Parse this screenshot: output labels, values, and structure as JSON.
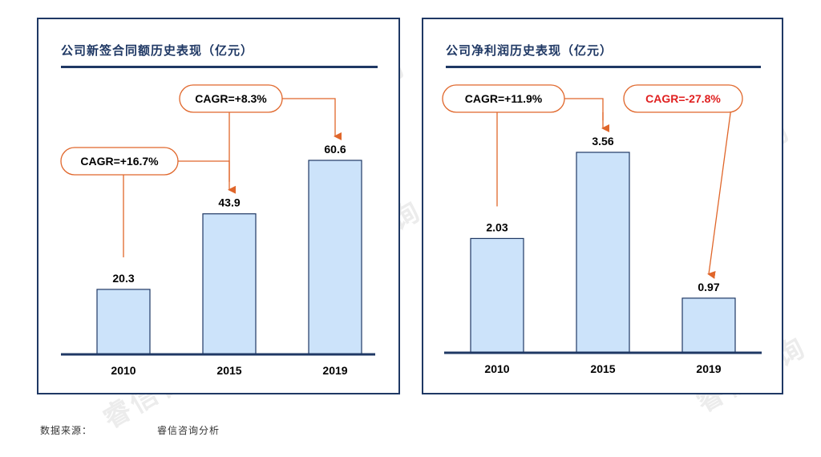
{
  "watermark": "睿信咨询",
  "source": {
    "label": "数据来源：",
    "value": "睿信咨询分析"
  },
  "colors": {
    "bar_fill": "#cce3fa",
    "bar_stroke": "#1f3864",
    "axis": "#1f3864",
    "arrow": "#e0662a",
    "cagr_negative": "#e02020"
  },
  "chart_data": [
    {
      "type": "bar",
      "title": "公司新签合同额历史表现（亿元）",
      "categories": [
        "2010",
        "2015",
        "2019"
      ],
      "values": [
        20.3,
        43.9,
        60.6
      ],
      "value_labels": [
        "20.3",
        "43.9",
        "60.6"
      ],
      "xlabel": "",
      "ylabel": "",
      "annotations": [
        {
          "text": "CAGR=+16.7%",
          "from": "2010",
          "to": "2015",
          "negative": false
        },
        {
          "text": "CAGR=+8.3%",
          "from": "2015",
          "to": "2019",
          "negative": false
        }
      ]
    },
    {
      "type": "bar",
      "title": "公司净利润历史表现（亿元）",
      "categories": [
        "2010",
        "2015",
        "2019"
      ],
      "values": [
        2.03,
        3.56,
        0.97
      ],
      "value_labels": [
        "2.03",
        "3.56",
        "0.97"
      ],
      "xlabel": "",
      "ylabel": "",
      "annotations": [
        {
          "text": "CAGR=+11.9%",
          "from": "2010",
          "to": "2015",
          "negative": false
        },
        {
          "text": "CAGR=-27.8%",
          "from": "2015",
          "to": "2019",
          "negative": true
        }
      ]
    }
  ]
}
